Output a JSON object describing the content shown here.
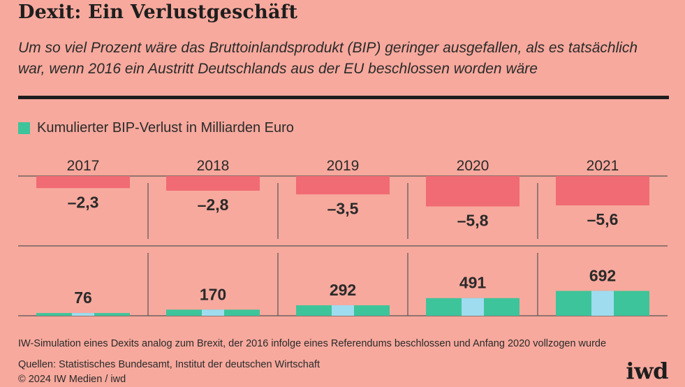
{
  "header": {
    "title": "Dexit: Ein Verlustgeschäft",
    "subtitle": "Um so viel Prozent wäre das Bruttoinlandsprodukt (BIP) geringer ausgefallen, als es tatsächlich war, wenn 2016 ein Austritt Deutschlands aus der EU beschlossen worden wäre"
  },
  "legend": {
    "label": "Kumulierter BIP-Verlust in Milliarden Euro"
  },
  "colors": {
    "background": "#f7a99d",
    "negative_bar": "#f06b74",
    "loss_bar": "#3ec49a",
    "loss_bar_center": "#9fdcef"
  },
  "chart_data": [
    {
      "type": "bar",
      "categories": [
        "2017",
        "2018",
        "2019",
        "2020",
        "2021"
      ],
      "values": [
        -2.3,
        -2.8,
        -3.5,
        -5.8,
        -5.6
      ],
      "value_labels": [
        "–2,3",
        "–2,8",
        "–3,5",
        "–5,8",
        "–5,6"
      ],
      "ylim": [
        -6,
        0
      ]
    },
    {
      "type": "bar",
      "categories": [
        "2017",
        "2018",
        "2019",
        "2020",
        "2021"
      ],
      "values": [
        76,
        170,
        292,
        491,
        692
      ],
      "value_labels": [
        "76",
        "170",
        "292",
        "491",
        "692"
      ],
      "ylim": [
        0,
        700
      ]
    }
  ],
  "footer": {
    "note": "IW-Simulation eines Dexits analog zum Brexit, der 2016 infolge eines Referendums beschlossen und Anfang 2020 vollzogen wurde",
    "sources": "Quellen: Statistisches Bundesamt, Institut der deutschen Wirtschaft",
    "copyright": "© 2024 IW Medien / iwd",
    "logo": "iwd"
  }
}
